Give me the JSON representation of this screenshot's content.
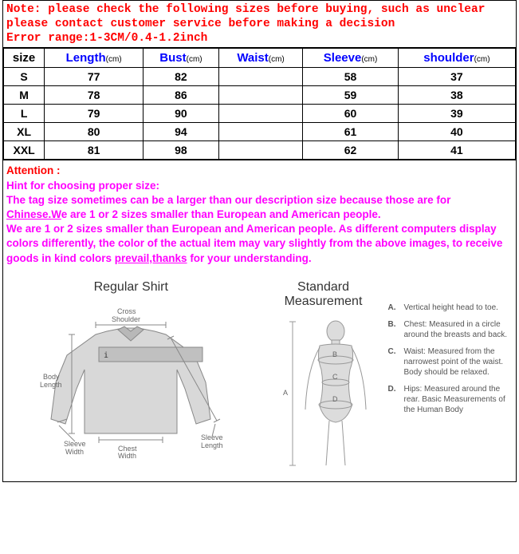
{
  "note": {
    "line1": "Note: please check the following sizes before buying, such as unclear",
    "line2": "please contact customer service before making a decision",
    "line3": "Error range:1-3CM/0.4-1.2inch",
    "color": "#ff0000",
    "font_family": "Courier New",
    "font_weight": "bold",
    "font_size": 14.5
  },
  "table": {
    "header_color": "#0000ff",
    "unit_label": "(cm)",
    "columns": [
      {
        "label": "size",
        "has_unit": false
      },
      {
        "label": "Length",
        "has_unit": true
      },
      {
        "label": "Bust",
        "has_unit": true
      },
      {
        "label": "Waist",
        "has_unit": true
      },
      {
        "label": "Sleeve",
        "has_unit": true
      },
      {
        "label": "shoulder",
        "has_unit": true
      }
    ],
    "rows": [
      {
        "size": "S",
        "length": "77",
        "bust": "82",
        "waist": "",
        "sleeve": "58",
        "shoulder": "37"
      },
      {
        "size": "M",
        "length": "78",
        "bust": "86",
        "waist": "",
        "sleeve": "59",
        "shoulder": "38"
      },
      {
        "size": "L",
        "length": "79",
        "bust": "90",
        "waist": "",
        "sleeve": "60",
        "shoulder": "39"
      },
      {
        "size": "XL",
        "length": "80",
        "bust": "94",
        "waist": "",
        "sleeve": "61",
        "shoulder": "40"
      },
      {
        "size": "XXL",
        "length": "81",
        "bust": "98",
        "waist": "",
        "sleeve": "62",
        "shoulder": "41"
      }
    ]
  },
  "attention": {
    "title": "Attention :",
    "title_color": "#ff0000",
    "text_color": "#ff00ff",
    "hint": "Hint for choosing proper size:",
    "p1a": "The tag size sometimes can be a larger than our description size because those are for ",
    "p1_underline1": "Chinese.W",
    "p1b": "e are 1 or 2 sizes smaller than European and American people.",
    "p2a": "We are 1 or 2 sizes smaller than European and American people. As different computers display colors differently, the color of the actual item may vary slightly from the above images, to receive goods in kind colors ",
    "p2_underline1": "prevail,thanks",
    "p2b": " for your understanding."
  },
  "diagrams": {
    "regular_shirt": {
      "title": "Regular Shirt",
      "labels": {
        "cross_shoulder": "Cross\nShoulder",
        "body_length": "Body\nLength",
        "sleeve_width": "Sleeve\nWidth",
        "chest_width": "Chest\nWidth",
        "sleeve_length": "Sleeve\nLength"
      }
    },
    "standard_measurement": {
      "title": "Standard Measurement",
      "items": [
        {
          "letter": "A.",
          "text": "Vertical height head to toe."
        },
        {
          "letter": "B.",
          "text": "Chest: Measured in a circle around the breasts and back."
        },
        {
          "letter": "C.",
          "text": "Waist: Measured from the narrowest point of the waist. Body should be relaxed."
        },
        {
          "letter": "D.",
          "text": "Hips: Measured around the rear. Basic Measurements of the Human Body"
        }
      ],
      "body_labels": {
        "A": "A",
        "B": "B",
        "C": "C",
        "D": "D"
      }
    }
  },
  "colors": {
    "background": "#ffffff",
    "border": "#000000",
    "shirt_fill": "#d8d8d8",
    "body_fill": "#dcdcdc",
    "label_text": "#666666"
  }
}
